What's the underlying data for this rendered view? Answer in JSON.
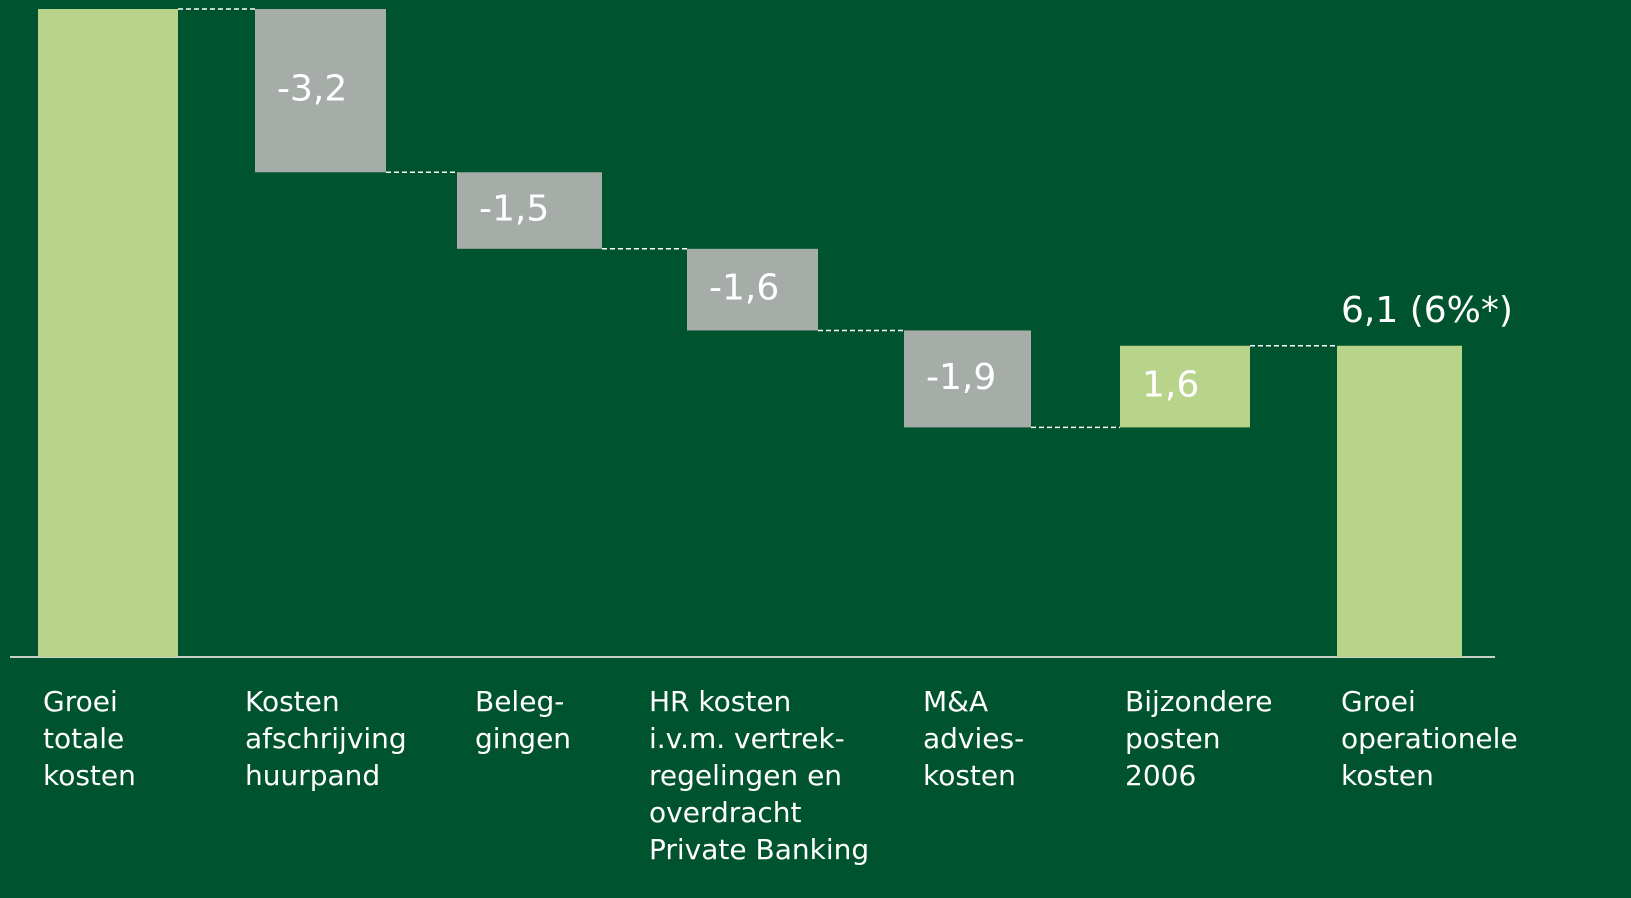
{
  "chart_data": {
    "type": "waterfall",
    "categories": [
      "Groei\ntotale\nkosten",
      "Kosten\nafschrijving\nhuurpand",
      "Beleg-\ngingen",
      "HR kosten\ni.v.m. vertrek-\nregelingen en\noverdracht\nPrivate Banking",
      "M&A\nadvies-\nkosten",
      "Bijzondere\nposten\n2006",
      "Groei\noperationele\nkosten"
    ],
    "values": [
      12.7,
      -3.2,
      -1.5,
      -1.6,
      -1.9,
      1.6,
      6.1
    ],
    "value_labels": [
      null,
      "-3,2",
      "-1,5",
      "-1,6",
      "-1,9",
      "1,6",
      "6,1 (6%*)"
    ],
    "totals": [
      true,
      false,
      false,
      false,
      false,
      false,
      true
    ],
    "colors": {
      "total": "#b8d48a",
      "increase": "#b8d48a",
      "decrease": "#a6ada8"
    }
  }
}
